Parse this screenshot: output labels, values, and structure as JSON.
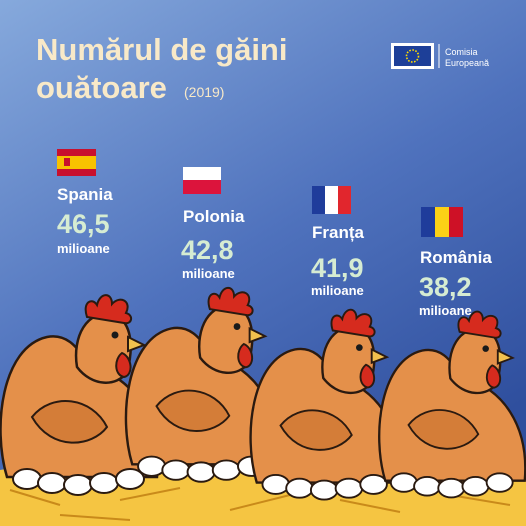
{
  "header": {
    "title_line1": "Numărul de găini",
    "title_line2": "ouătoare",
    "year": "(2019)"
  },
  "logo": {
    "line1": "Comisia",
    "line2": "Europeană"
  },
  "countries": [
    {
      "name": "Spania",
      "value": "46,5",
      "unit": "milioane"
    },
    {
      "name": "Polonia",
      "value": "42,8",
      "unit": "milioane"
    },
    {
      "name": "Franța",
      "value": "41,9",
      "unit": "milioane"
    },
    {
      "name": "România",
      "value": "38,2",
      "unit": "milioane"
    }
  ]
}
